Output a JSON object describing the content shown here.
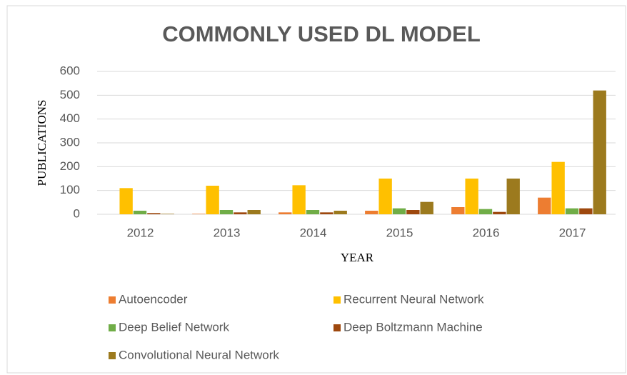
{
  "chart_data": {
    "type": "bar",
    "title": "COMMONLY USED DL MODEL",
    "x_label": "YEAR",
    "y_label": "PUBLICATIONS",
    "categories": [
      "2012",
      "2013",
      "2014",
      "2015",
      "2016",
      "2017"
    ],
    "series": [
      {
        "name": "Autoencoder",
        "color": "#ed7d31",
        "values": [
          0,
          2,
          8,
          15,
          30,
          70
        ]
      },
      {
        "name": "Recurrent Neural Network",
        "color": "#ffc000",
        "values": [
          110,
          120,
          122,
          150,
          150,
          220
        ]
      },
      {
        "name": "Deep Belief Network",
        "color": "#70ad47",
        "values": [
          15,
          18,
          18,
          25,
          22,
          25
        ]
      },
      {
        "name": "Deep Boltzmann Machine",
        "color": "#9e480e",
        "values": [
          5,
          8,
          8,
          18,
          10,
          25
        ]
      },
      {
        "name": "Convolutional Neural Network",
        "color": "#9c7a1e",
        "values": [
          2,
          18,
          15,
          52,
          150,
          520
        ]
      }
    ],
    "ylim": [
      0,
      600
    ],
    "yticks": [
      0,
      100,
      200,
      300,
      400,
      500,
      600
    ],
    "grid": true,
    "legend": "bottom"
  }
}
